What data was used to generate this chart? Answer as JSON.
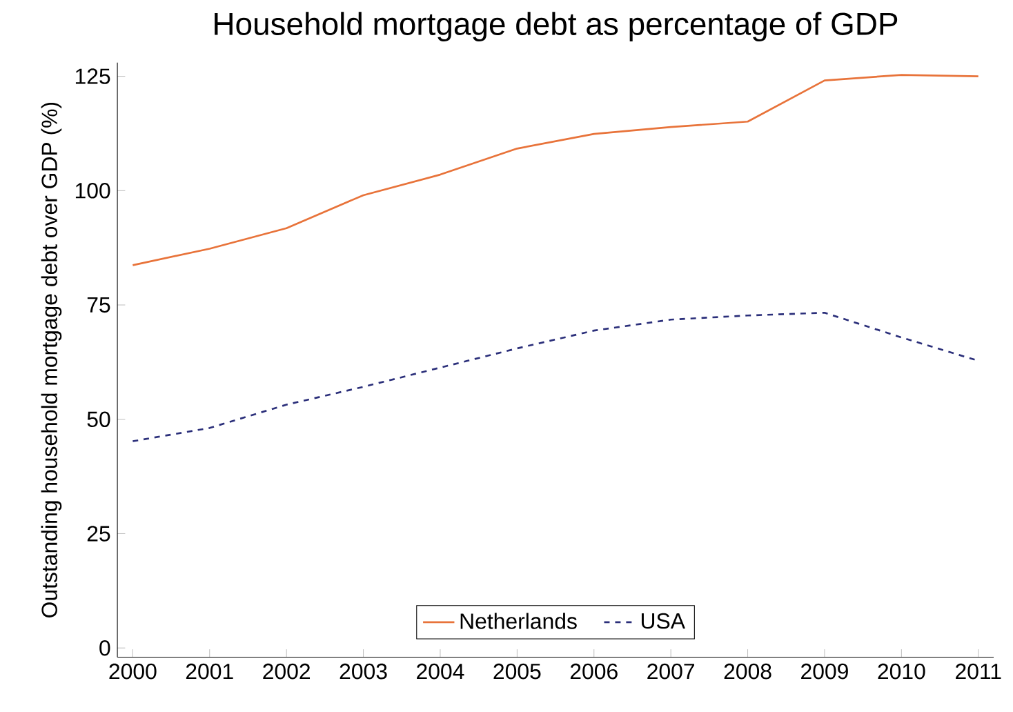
{
  "chart_data": {
    "type": "line",
    "title": "Household mortgage debt as percentage of GDP",
    "ylabel": "Outstanding household mortgage debt over GDP (%)",
    "x": [
      2000,
      2001,
      2002,
      2003,
      2004,
      2005,
      2006,
      2007,
      2008,
      2009,
      2010,
      2011
    ],
    "series": [
      {
        "name": "Netherlands",
        "color": "#e8733a",
        "line_style": "solid",
        "values": [
          83.7,
          87.3,
          91.8,
          99,
          103.5,
          109.2,
          112.4,
          113.9,
          115.1,
          124.1,
          125.3,
          125
        ]
      },
      {
        "name": "USA",
        "color": "#2b2f7a",
        "line_style": "dashed",
        "values": [
          45.2,
          48.1,
          53.2,
          57.1,
          61.3,
          65.5,
          69.4,
          71.8,
          72.7,
          73.3,
          67.9,
          62.8
        ]
      }
    ],
    "xlim": [
      1999.8,
      2011.2
    ],
    "xticks": [
      2000,
      2001,
      2002,
      2003,
      2004,
      2005,
      2006,
      2007,
      2008,
      2009,
      2010,
      2011
    ],
    "ylim": [
      -2,
      128
    ],
    "yticks": [
      0,
      25,
      50,
      75,
      100,
      125
    ],
    "grid": false,
    "legend": "bottom",
    "marker": "none"
  }
}
